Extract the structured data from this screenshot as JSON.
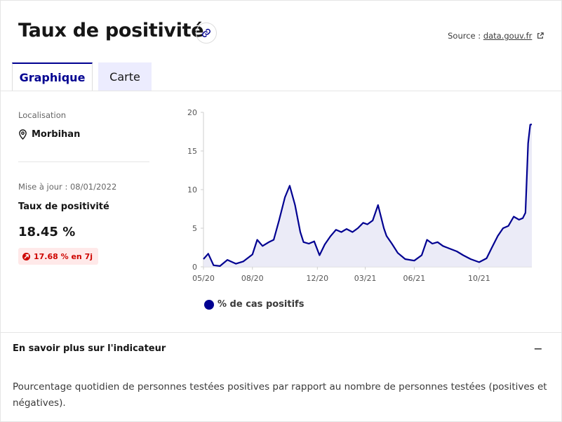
{
  "header": {
    "title": "Taux de positivité",
    "source_prefix": "Source : ",
    "source_link": "data.gouv.fr"
  },
  "tabs": [
    {
      "label": "Graphique",
      "active": true
    },
    {
      "label": "Carte",
      "active": false
    }
  ],
  "panel": {
    "localisation_label": "Localisation",
    "localisation_value": "Morbihan",
    "update_label": "Mise à jour : 08/01/2022",
    "metric_label": "Taux de positivité",
    "metric_value": "18.45 %",
    "trend_badge": "17.68 % en 7j"
  },
  "chart_data": {
    "type": "area",
    "x_ticks": [
      "05/20",
      "08/20",
      "12/20",
      "03/21",
      "06/21",
      "10/21"
    ],
    "y_ticks": [
      "0",
      "5",
      "10",
      "15",
      "20"
    ],
    "ylim": [
      0,
      20
    ],
    "grid": false,
    "legend_position": "bottom-left",
    "series": [
      {
        "name": "% de cas positifs",
        "color": "#000091",
        "x": [
          "2020-05-01",
          "2020-05-10",
          "2020-05-20",
          "2020-06-01",
          "2020-06-15",
          "2020-07-01",
          "2020-07-15",
          "2020-08-01",
          "2020-08-10",
          "2020-08-20",
          "2020-09-01",
          "2020-09-10",
          "2020-09-20",
          "2020-10-01",
          "2020-10-10",
          "2020-10-20",
          "2020-10-30",
          "2020-11-05",
          "2020-11-15",
          "2020-11-25",
          "2020-12-05",
          "2020-12-15",
          "2020-12-25",
          "2021-01-05",
          "2021-01-15",
          "2021-01-25",
          "2021-02-05",
          "2021-02-15",
          "2021-02-25",
          "2021-03-05",
          "2021-03-15",
          "2021-03-25",
          "2021-04-05",
          "2021-04-10",
          "2021-04-20",
          "2021-05-01",
          "2021-05-15",
          "2021-06-01",
          "2021-06-15",
          "2021-06-25",
          "2021-07-05",
          "2021-07-15",
          "2021-07-25",
          "2021-08-05",
          "2021-08-20",
          "2021-09-01",
          "2021-09-15",
          "2021-10-01",
          "2021-10-15",
          "2021-10-25",
          "2021-11-05",
          "2021-11-15",
          "2021-11-25",
          "2021-12-05",
          "2021-12-15",
          "2021-12-22",
          "2021-12-27",
          "2022-01-01",
          "2022-01-05",
          "2022-01-08"
        ],
        "values": [
          1.0,
          1.7,
          0.2,
          0.1,
          0.9,
          0.4,
          0.7,
          1.6,
          3.5,
          2.7,
          3.2,
          3.5,
          6.0,
          9.0,
          10.5,
          8.0,
          4.5,
          3.2,
          3.0,
          3.3,
          1.5,
          2.9,
          3.9,
          4.8,
          4.5,
          4.9,
          4.5,
          5.0,
          5.7,
          5.5,
          6.0,
          8.0,
          5.0,
          4.0,
          3.0,
          1.8,
          1.0,
          0.8,
          1.5,
          3.5,
          3.0,
          3.2,
          2.7,
          2.4,
          2.0,
          1.5,
          1.0,
          0.6,
          1.1,
          2.5,
          4.0,
          5.0,
          5.3,
          6.5,
          6.1,
          6.3,
          7.0,
          16.0,
          18.4,
          18.45
        ]
      }
    ]
  },
  "section": {
    "accordion_title": "En savoir plus sur l'indicateur",
    "toggle": "−",
    "description": "Pourcentage quotidien de personnes testées positives par rapport au nombre de personnes testées (positives et négatives)."
  }
}
